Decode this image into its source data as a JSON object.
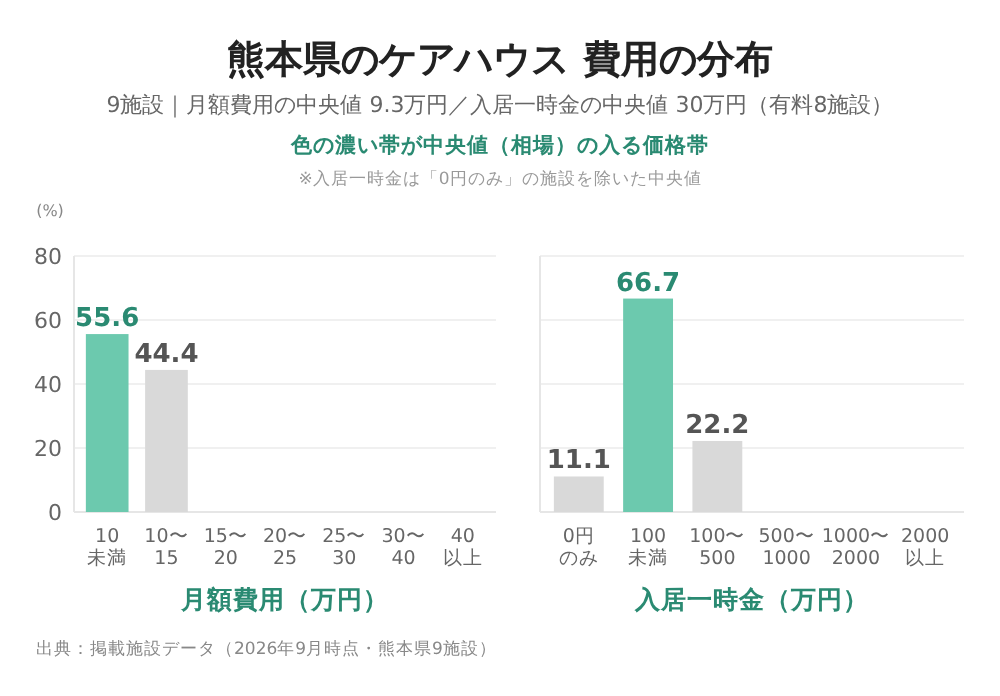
{
  "chart_data": [
    {
      "type": "bar",
      "title": "熊本県のケアハウス 費用の分布",
      "subtitle": "9施設｜月額費用の中央値 9.3万円／入居一時金の中央値 30万円（有料8施設）",
      "annotations": [
        "色の濃い帯が中央値（相場）の入る価格帯",
        "※入居一時金は「0円のみ」の施設を除いた中央値",
        "出典：掲載施設データ（2026年9月時点・熊本県9施設）"
      ],
      "ylabel": "(%)",
      "xlabel": "月額費用（万円）",
      "categories": [
        "10未満",
        "10〜15",
        "15〜20",
        "20〜25",
        "25〜30",
        "30〜40",
        "40以上"
      ],
      "values": [
        55.6,
        44.4,
        0,
        0,
        0,
        0,
        0
      ],
      "colors": [
        "#6cc9ae",
        "#d9d9d9",
        "#d9d9d9",
        "#d9d9d9",
        "#d9d9d9",
        "#d9d9d9",
        "#d9d9d9"
      ],
      "value_labels": [
        "55.6",
        "44.4",
        null,
        null,
        null,
        null,
        null
      ],
      "ylim": [
        0,
        80
      ],
      "yticks": [
        0,
        20,
        40,
        60,
        80
      ],
      "grid": "y"
    },
    {
      "type": "bar",
      "xlabel": "入居一時金（万円）",
      "categories": [
        "0円のみ",
        "100未満",
        "100〜500",
        "500〜1000",
        "1000〜2000",
        "2000以上"
      ],
      "values": [
        11.1,
        66.7,
        22.2,
        0,
        0,
        0
      ],
      "colors": [
        "#d9d9d9",
        "#6cc9ae",
        "#d9d9d9",
        "#d9d9d9",
        "#d9d9d9",
        "#d9d9d9"
      ],
      "value_labels": [
        "11.1",
        "66.7",
        "22.2",
        null,
        null,
        null
      ],
      "ylim": [
        0,
        80
      ],
      "yticks": [
        0,
        20,
        40,
        60,
        80
      ],
      "grid": "y",
      "tick_labels": "x"
    }
  ]
}
